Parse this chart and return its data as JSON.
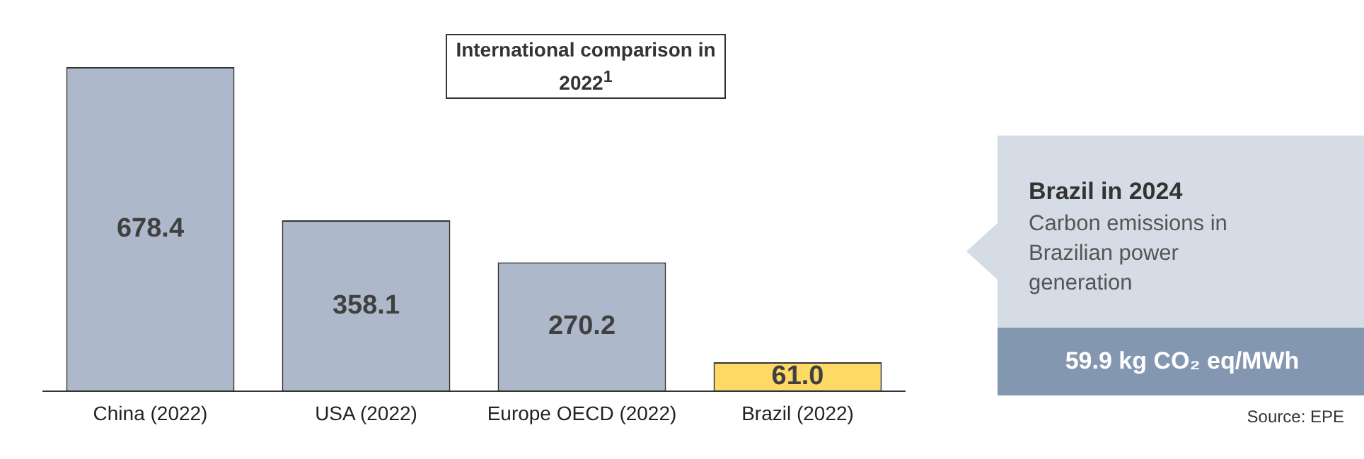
{
  "chart_data": {
    "type": "bar",
    "title": "International comparison in 2022$^{1}$",
    "categories": [
      "China (2022)",
      "USA (2022)",
      "Europe OECD (2022)",
      "Brazil (2022)"
    ],
    "values": [
      678.4,
      358.1,
      270.2,
      61.0
    ],
    "value_labels": [
      "678.4",
      "358.1",
      "270.2",
      "61.0"
    ],
    "colors": [
      "#adb9ca",
      "#adb9ca",
      "#adb9ca",
      "#ffd966"
    ],
    "annotations": [
      "Brazil in 2024",
      "Carbon emissions in Brazilian power generation",
      "59.9 kg CO₂ eq/MWh",
      "Source: EPE"
    ]
  }
}
